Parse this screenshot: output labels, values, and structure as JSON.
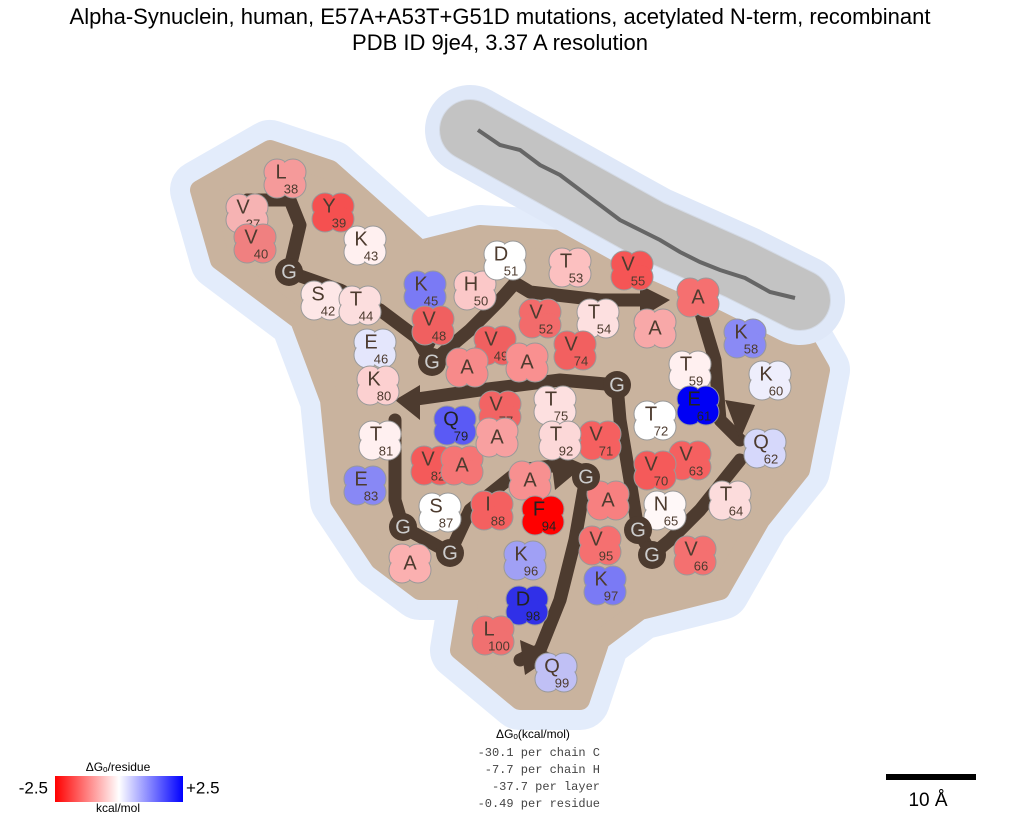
{
  "title": [
    "Alpha-Synuclein, human, E57A+A53T+G51D mutations, acetylated N-term, recombinant",
    "PDB ID 9je4, 3.37 A resolution"
  ],
  "residues": [
    {
      "letter": "V",
      "num": "37",
      "color": "#f6b3b3"
    },
    {
      "letter": "L",
      "num": "38",
      "color": "#f59a9a"
    },
    {
      "letter": "Y",
      "num": "39",
      "color": "#f55050"
    },
    {
      "letter": "V",
      "num": "40",
      "color": "#f08080"
    },
    {
      "letter": "G",
      "color": "#4d3b2f"
    },
    {
      "letter": "S",
      "num": "42",
      "color": "#fde7e7"
    },
    {
      "letter": "K",
      "num": "43",
      "color": "#fff0f0"
    },
    {
      "letter": "T",
      "num": "44",
      "color": "#fcdede"
    },
    {
      "letter": "K",
      "num": "45",
      "color": "#7a7af5"
    },
    {
      "letter": "E",
      "num": "46",
      "color": "#e4e6fc"
    },
    {
      "letter": "G",
      "color": "#4d3b2f"
    },
    {
      "letter": "V",
      "num": "48",
      "color": "#f06060"
    },
    {
      "letter": "V",
      "num": "49",
      "color": "#f06060"
    },
    {
      "letter": "H",
      "num": "50",
      "color": "#fbc8c8"
    },
    {
      "letter": "D",
      "num": "51",
      "color": "#ffffff"
    },
    {
      "letter": "V",
      "num": "52",
      "color": "#f26b6b"
    },
    {
      "letter": "T",
      "num": "53",
      "color": "#fcc0c0"
    },
    {
      "letter": "T",
      "num": "54",
      "color": "#fde0e0"
    },
    {
      "letter": "V",
      "num": "55",
      "color": "#f55555"
    },
    {
      "letter": "A",
      "color": "#f8a8a8"
    },
    {
      "letter": "A",
      "color": "#f57070"
    },
    {
      "letter": "K",
      "num": "58",
      "color": "#8a8af5"
    },
    {
      "letter": "T",
      "num": "59",
      "color": "#fff0f0"
    },
    {
      "letter": "K",
      "num": "60",
      "color": "#eeeefc"
    },
    {
      "letter": "E",
      "num": "61",
      "color": "#0000f5"
    },
    {
      "letter": "Q",
      "num": "62",
      "color": "#d6d8fb"
    },
    {
      "letter": "V",
      "num": "63",
      "color": "#f56060"
    },
    {
      "letter": "T",
      "num": "64",
      "color": "#fcdcdc"
    },
    {
      "letter": "N",
      "num": "65",
      "color": "#fff8f8"
    },
    {
      "letter": "V",
      "num": "66",
      "color": "#f47070"
    },
    {
      "letter": "G",
      "color": "#4d3b2f"
    },
    {
      "letter": "G",
      "color": "#4d3b2f"
    },
    {
      "letter": "A",
      "color": "#f78080"
    },
    {
      "letter": "V",
      "num": "70",
      "color": "#f55a5a"
    },
    {
      "letter": "V",
      "num": "71",
      "color": "#f56060"
    },
    {
      "letter": "T",
      "num": "72",
      "color": "#ffffff"
    },
    {
      "letter": "G",
      "color": "#4d3b2f"
    },
    {
      "letter": "V",
      "num": "74",
      "color": "#f26060"
    },
    {
      "letter": "T",
      "num": "75",
      "color": "#fde0e0"
    },
    {
      "letter": "A",
      "color": "#f99090"
    },
    {
      "letter": "V",
      "num": "77",
      "color": "#f26464"
    },
    {
      "letter": "A",
      "color": "#f78a8a"
    },
    {
      "letter": "Q",
      "num": "79",
      "color": "#5a5af5"
    },
    {
      "letter": "K",
      "num": "80",
      "color": "#fcd0d0"
    },
    {
      "letter": "T",
      "num": "81",
      "color": "#fff0f0"
    },
    {
      "letter": "V",
      "num": "82",
      "color": "#f45a5a"
    },
    {
      "letter": "E",
      "num": "83",
      "color": "#8888f5"
    },
    {
      "letter": "G",
      "color": "#4d3b2f"
    },
    {
      "letter": "A",
      "color": "#fbb0b0"
    },
    {
      "letter": "G",
      "color": "#4d3b2f"
    },
    {
      "letter": "S",
      "num": "87",
      "color": "#ffffff"
    },
    {
      "letter": "I",
      "num": "88",
      "color": "#f46060"
    },
    {
      "letter": "A",
      "color": "#f57575"
    },
    {
      "letter": "A",
      "color": "#f8a0a0"
    },
    {
      "letter": "A",
      "color": "#f79090"
    },
    {
      "letter": "T",
      "num": "92",
      "color": "#fcd8d8"
    },
    {
      "letter": "G",
      "color": "#4d3b2f"
    },
    {
      "letter": "F",
      "num": "94",
      "color": "#ff0000"
    },
    {
      "letter": "V",
      "num": "95",
      "color": "#f57070"
    },
    {
      "letter": "K",
      "num": "96",
      "color": "#a0a0f5"
    },
    {
      "letter": "K",
      "num": "97",
      "color": "#7a7af5"
    },
    {
      "letter": "D",
      "num": "98",
      "color": "#3030e8"
    },
    {
      "letter": "Q",
      "num": "99",
      "color": "#c0c0f5"
    },
    {
      "letter": "L",
      "num": "100",
      "color": "#f07070"
    }
  ],
  "legend": {
    "title": "ΔGₒ/residue",
    "min": "-2.5",
    "max": "+2.5",
    "unit": "kcal/mol",
    "colors": [
      "#ff0000",
      "#ffffff",
      "#0000ff"
    ]
  },
  "energy": {
    "header": "ΔGₒ(kcal/mol)",
    "lines": [
      "-30.1 per chain C",
      "-7.7 per chain H",
      "-37.7 per layer",
      "-0.49 per residue"
    ]
  },
  "scale_bar": "10 Å"
}
